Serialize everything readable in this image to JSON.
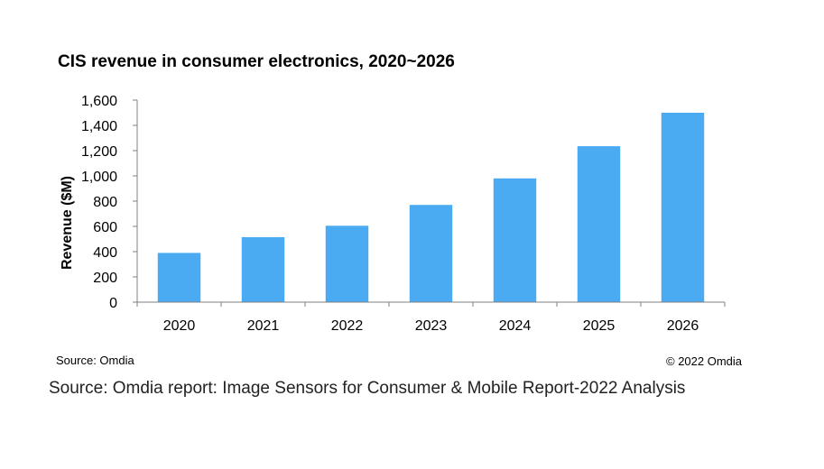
{
  "chart_data": {
    "type": "bar",
    "title": "CIS revenue in consumer electronics, 2020~2026",
    "xlabel": "",
    "ylabel": "Revenue ($M)",
    "categories": [
      "2020",
      "2021",
      "2022",
      "2023",
      "2024",
      "2025",
      "2026"
    ],
    "values": [
      390,
      515,
      605,
      770,
      980,
      1235,
      1500
    ],
    "ylim": [
      0,
      1600
    ],
    "yticks": [
      0,
      200,
      400,
      600,
      800,
      1000,
      1200,
      1400,
      1600
    ],
    "ytick_labels": [
      "0",
      "200",
      "400",
      "600",
      "800",
      "1,000",
      "1,200",
      "1,400",
      "1,600"
    ],
    "grid": false,
    "bar_color": "#4aabf2"
  },
  "footer": {
    "source_small": "Source: Omdia",
    "copyright": "© 2022 Omdia",
    "source_large": "Source:  Omdia report: Image Sensors for Consumer & Mobile Report-2022 Analysis"
  }
}
